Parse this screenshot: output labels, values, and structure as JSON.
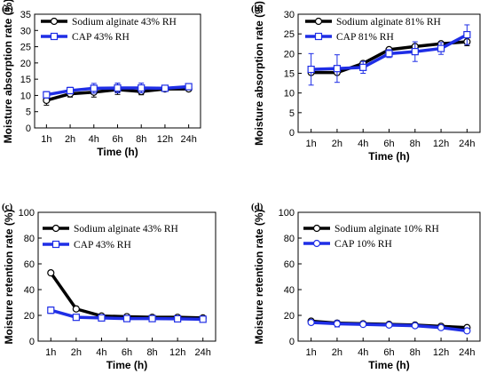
{
  "colors": {
    "series_a": "#000000",
    "series_b": "#1f2ee6",
    "axis": "#000000"
  },
  "chart_data": [
    {
      "type": "line",
      "panel_label": "(a)",
      "xlabel": "Time (h)",
      "ylabel": "Moisture absorption rate (%)",
      "categories": [
        "1h",
        "2h",
        "4h",
        "6h",
        "8h",
        "12h",
        "24h"
      ],
      "ylim": [
        0,
        35
      ],
      "yticks": [
        "0",
        "5",
        "10",
        "15",
        "20",
        "25",
        "30",
        "35"
      ],
      "yticks_values": [
        0,
        5,
        10,
        15,
        20,
        25,
        30,
        35
      ],
      "legend_position": "top-left",
      "series": [
        {
          "name": "Sodium alginate  43% RH",
          "values": [
            8.5,
            10.5,
            11.0,
            11.8,
            11.2,
            12.0,
            12.0
          ],
          "err": [
            1.5,
            1.0,
            1.5,
            1.5,
            1.0,
            0.5,
            0.5
          ],
          "marker": "circle"
        },
        {
          "name": "CAP 43% RH",
          "values": [
            10.2,
            11.5,
            12.2,
            12.3,
            12.3,
            12.2,
            12.7
          ],
          "err": [
            1.0,
            1.0,
            1.5,
            1.5,
            1.5,
            0.8,
            0.8
          ],
          "marker": "square"
        }
      ]
    },
    {
      "type": "line",
      "panel_label": "(b)",
      "xlabel": "Time (h)",
      "ylabel": "Moisture absorption rate (%)",
      "categories": [
        "1h",
        "2h",
        "4h",
        "6h",
        "8h",
        "12h",
        "24h"
      ],
      "ylim": [
        0,
        30
      ],
      "yticks": [
        "0",
        "5",
        "10",
        "15",
        "20",
        "25",
        "30"
      ],
      "yticks_values": [
        0,
        5,
        10,
        15,
        20,
        25,
        30
      ],
      "legend_position": "top-left",
      "series": [
        {
          "name": "Sodium alginate  81% RH",
          "values": [
            15.2,
            15.2,
            17.5,
            21.0,
            21.8,
            22.5,
            23.0
          ],
          "err": [
            0.5,
            0.5,
            0.5,
            0.5,
            0.5,
            0.5,
            1.0
          ],
          "marker": "circle"
        },
        {
          "name": "CAP 81% RH",
          "values": [
            16.0,
            16.2,
            16.5,
            20.0,
            20.5,
            21.3,
            24.8
          ],
          "err": [
            4.0,
            3.5,
            1.5,
            1.0,
            2.5,
            1.5,
            2.5
          ],
          "marker": "square"
        }
      ]
    },
    {
      "type": "line",
      "panel_label": "(c)",
      "xlabel": "Time (h)",
      "ylabel": "Moisture retention rate (%)",
      "categories": [
        "1h",
        "2h",
        "4h",
        "6h",
        "8h",
        "12h",
        "24h"
      ],
      "ylim": [
        0,
        100
      ],
      "yticks": [
        "0",
        "20",
        "40",
        "60",
        "80",
        "100"
      ],
      "yticks_values": [
        0,
        20,
        40,
        60,
        80,
        100
      ],
      "legend_position": "top-left",
      "series": [
        {
          "name": "Sodium alginate 43% RH",
          "values": [
            53,
            25,
            19.5,
            19,
            18.5,
            18.5,
            18
          ],
          "err": [
            1.5,
            1.5,
            1.0,
            1.0,
            1.0,
            1.0,
            1.0
          ],
          "marker": "circle"
        },
        {
          "name": "CAP 43% RH",
          "values": [
            24,
            18.5,
            18,
            17.5,
            17.5,
            17.3,
            17
          ],
          "err": [
            2.5,
            1.0,
            1.0,
            1.0,
            1.0,
            1.0,
            1.0
          ],
          "marker": "square"
        }
      ]
    },
    {
      "type": "line",
      "panel_label": "(d)",
      "xlabel": "Time (h)",
      "ylabel": "Moisture retention rate (%)",
      "categories": [
        "1h",
        "2h",
        "4h",
        "6h",
        "8h",
        "12h",
        "24h"
      ],
      "ylim": [
        0,
        100
      ],
      "yticks": [
        "0",
        "20",
        "40",
        "60",
        "80",
        "100"
      ],
      "yticks_values": [
        0,
        20,
        40,
        60,
        80,
        100
      ],
      "legend_position": "top-left",
      "series": [
        {
          "name": "Sodium alginate 10% RH",
          "values": [
            15.5,
            14,
            13.5,
            13,
            12.5,
            11.5,
            10.5
          ],
          "err": [
            1.0,
            1.0,
            1.0,
            1.0,
            1.0,
            1.0,
            1.0
          ],
          "marker": "circle"
        },
        {
          "name": "CAP 10% RH",
          "values": [
            14.5,
            13.5,
            13,
            12.5,
            12,
            10.5,
            8
          ],
          "err": [
            1.5,
            2.5,
            1.5,
            1.0,
            1.0,
            1.0,
            1.0
          ],
          "marker": "circle"
        }
      ]
    }
  ]
}
